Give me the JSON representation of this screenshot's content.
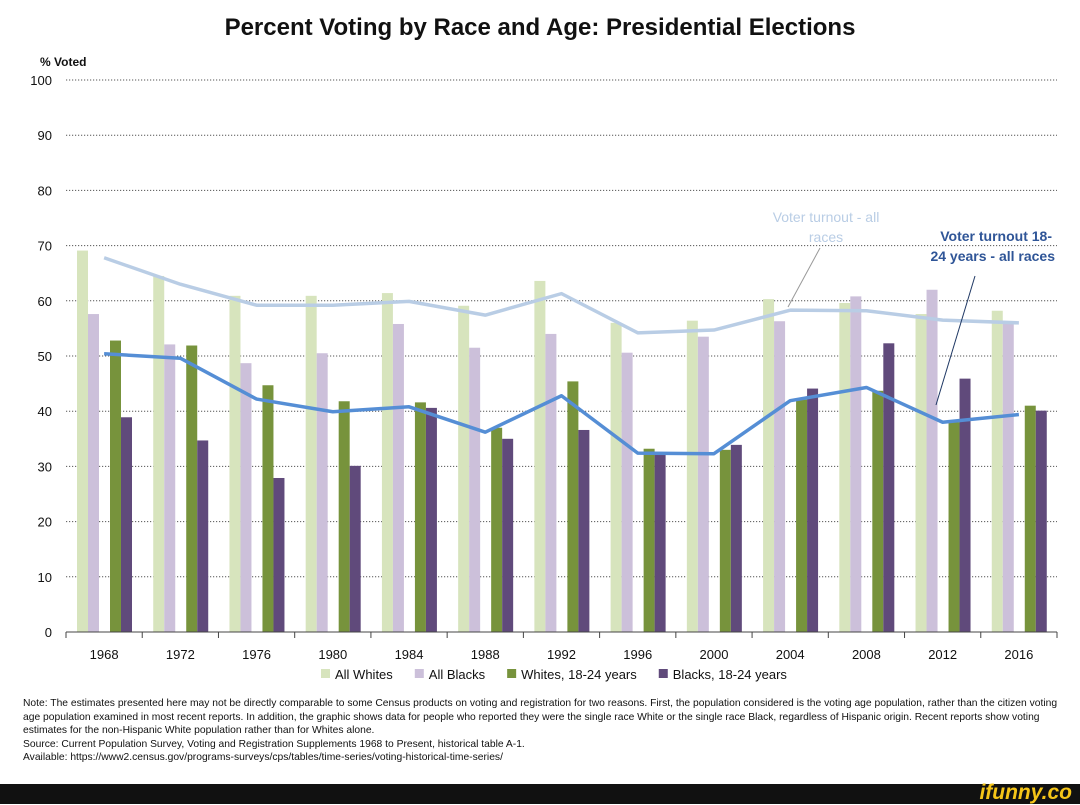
{
  "chart_data": {
    "type": "bar",
    "title": "Percent Voting by Race and Age:  Presidential Elections",
    "ylabel": "% Voted",
    "ylim": [
      0,
      100
    ],
    "yticks": [
      0,
      10,
      20,
      30,
      40,
      50,
      60,
      70,
      80,
      90,
      100
    ],
    "grid": true,
    "legend_placement": "bottom",
    "categories": [
      "1968",
      "1972",
      "1976",
      "1980",
      "1984",
      "1988",
      "1992",
      "1996",
      "2000",
      "2004",
      "2008",
      "2012",
      "2016"
    ],
    "series": [
      {
        "name": "All Whites",
        "type": "bar",
        "color": "#d7e4bd",
        "values": [
          69.1,
          64.5,
          60.9,
          60.9,
          61.4,
          59.1,
          63.6,
          56.0,
          56.4,
          60.3,
          59.6,
          57.6,
          58.2
        ]
      },
      {
        "name": "All Blacks",
        "type": "bar",
        "color": "#ccc0da",
        "values": [
          57.6,
          52.1,
          48.7,
          50.5,
          55.8,
          51.5,
          54.0,
          50.6,
          53.5,
          56.3,
          60.8,
          62.0,
          55.9
        ]
      },
      {
        "name": "Whites, 18-24 years",
        "type": "bar",
        "color": "#77933c",
        "values": [
          52.8,
          51.9,
          44.7,
          41.8,
          41.6,
          37.0,
          45.4,
          33.2,
          33.0,
          42.1,
          43.7,
          38.0,
          41.0
        ]
      },
      {
        "name": "Blacks, 18-24 years",
        "type": "bar",
        "color": "#604a7b",
        "values": [
          38.9,
          34.7,
          27.9,
          30.1,
          40.6,
          35.0,
          36.6,
          32.3,
          33.9,
          44.1,
          52.3,
          45.9,
          40.1
        ]
      },
      {
        "name": "Voter turnout - all races",
        "type": "line",
        "color": "#b9cde5",
        "values": [
          67.8,
          63.0,
          59.2,
          59.2,
          59.9,
          57.4,
          61.3,
          54.2,
          54.7,
          58.3,
          58.2,
          56.5,
          56.0
        ]
      },
      {
        "name": "Voter turnout 18-24 years - all races",
        "type": "line",
        "color": "#558ed5",
        "values": [
          50.4,
          49.6,
          42.2,
          39.9,
          40.8,
          36.2,
          42.8,
          32.4,
          32.3,
          41.9,
          44.3,
          38.0,
          39.4
        ]
      }
    ],
    "annotations": [
      "Voter turnout - all",
      "races",
      "Voter turnout 18-",
      "24 years - all races"
    ]
  },
  "notes": {
    "note": "Note: The estimates presented here may not be directly comparable to some Census products on voting and registration for two reasons. First, the population considered is the voting age population, rather than the citizen voting age population examined in most recent reports. In addition, the graphic shows data for people who reported they were the single race White or the single race Black, regardless of Hispanic origin. Recent reports show voting estimates for the non-Hispanic White population rather than for Whites alone.",
    "source": "Source: Current Population Survey, Voting and  Registration Supplements 1968 to Present, historical table A-1.",
    "available": "Available: https://www2.census.gov/programs-surveys/cps/tables/time-series/voting-historical-time-series/"
  },
  "watermark": "ifunny.co"
}
